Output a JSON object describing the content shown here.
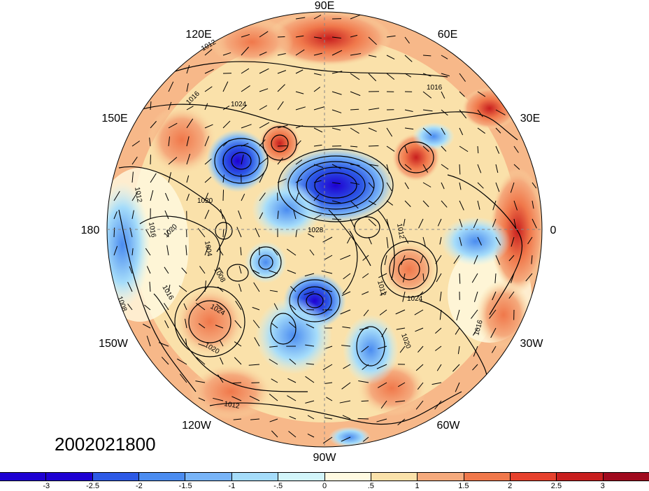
{
  "timestamp": "2002021800",
  "projection": "polar-stereographic-north",
  "longitude_labels": [
    {
      "id": "90E",
      "text": "90E"
    },
    {
      "id": "60E",
      "text": "60E"
    },
    {
      "id": "30E",
      "text": "30E"
    },
    {
      "id": "0",
      "text": "0"
    },
    {
      "id": "30W",
      "text": "30W"
    },
    {
      "id": "60W",
      "text": "60W"
    },
    {
      "id": "90W",
      "text": "90W"
    },
    {
      "id": "120W",
      "text": "120W"
    },
    {
      "id": "150W",
      "text": "150W"
    },
    {
      "id": "180",
      "text": "180"
    },
    {
      "id": "150E",
      "text": "150E"
    },
    {
      "id": "120E",
      "text": "120E"
    }
  ],
  "contour_labels": [
    "1012",
    "1016",
    "1024",
    "1020",
    "1016",
    "1012",
    "1016",
    "1020",
    "1004",
    "1008",
    "1028",
    "1012",
    "1024",
    "1020",
    "1008",
    "1016",
    "1024",
    "1020",
    "1016",
    "1012",
    "1012"
  ],
  "colorbar": {
    "colors": [
      "#1e00d2",
      "#2d5ae6",
      "#4b8cf0",
      "#78b4f8",
      "#a5dcfa",
      "#d2f5fa",
      "#fffae1",
      "#fae1aa",
      "#f5aa7d",
      "#f0784b",
      "#e6412d",
      "#c81e1e",
      "#a00a1e"
    ],
    "labels": [
      "-3",
      "-2.5",
      "-2",
      "-1.5",
      "-1",
      "-.5",
      "0",
      ".5",
      "1",
      "1.5",
      "2",
      "2.5",
      "3"
    ]
  },
  "colors": {
    "strong_negative": "#1e00d2",
    "negative": "#4b8cf0",
    "weak_negative": "#a5dcfa",
    "neutral": "#fffae1",
    "weak_positive": "#fae1aa",
    "positive": "#f0784b",
    "strong_positive": "#c81e1e"
  }
}
